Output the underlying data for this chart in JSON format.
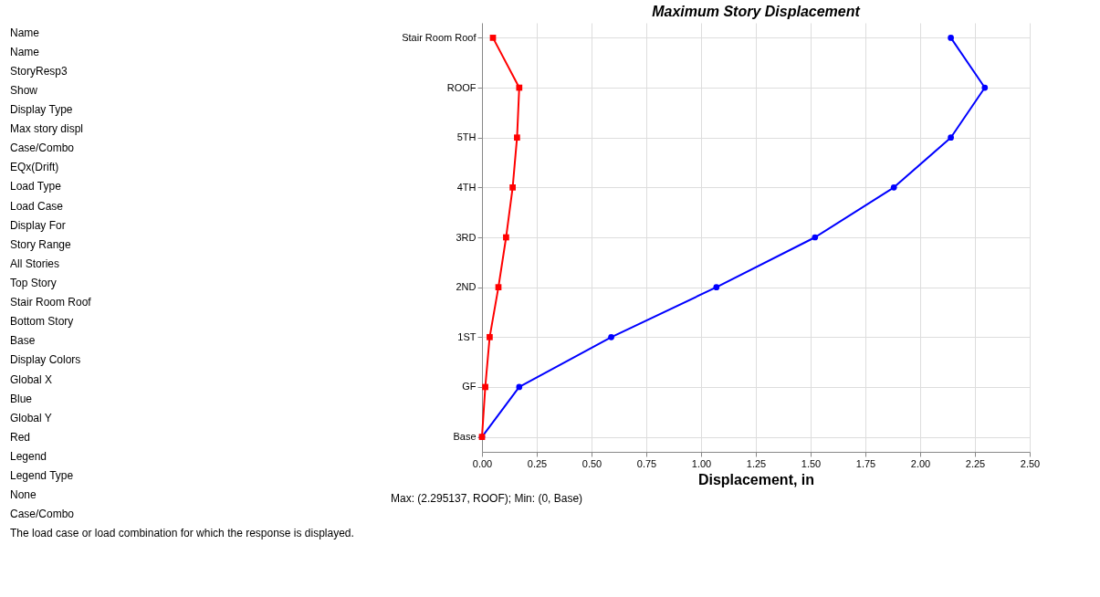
{
  "chart_data": [
    {
      "type": "other",
      "annotations": [
        "Name",
        "Name",
        "StoryResp3",
        "Show",
        "Display Type",
        "Max story displ",
        "Case/Combo",
        "EQx(Drift)",
        "Load Type",
        "Load Case",
        "Display For",
        "Story Range",
        "All Stories",
        "Top Story",
        "Stair Room Roof",
        "Bottom Story",
        "Base",
        "Display Colors",
        "Global X",
        "Blue",
        "Global Y",
        "Red",
        "Legend",
        "Legend Type",
        "None",
        "Case/Combo",
        "The load case or load combination for which the response is displayed."
      ]
    },
    {
      "type": "line",
      "orientation": "horizontal",
      "title": "Maximum Story Displacement",
      "xlabel": "Displacement, in",
      "categories": [
        "Stair Room Roof",
        "ROOF",
        "5TH",
        "4TH",
        "3RD",
        "2ND",
        "1ST",
        "GF",
        "Base"
      ],
      "series": [
        {
          "color": "#0000ff",
          "marker": "circle",
          "values": [
            2.14,
            2.295,
            2.14,
            1.88,
            1.52,
            1.07,
            0.59,
            0.17,
            0
          ]
        },
        {
          "color": "#ff0000",
          "marker": "square",
          "values": [
            0.05,
            0.17,
            0.16,
            0.14,
            0.11,
            0.075,
            0.035,
            0.015,
            0
          ]
        }
      ],
      "xlim": [
        0,
        2.5
      ],
      "xticks": [
        {
          "value": 0,
          "label": "0.00"
        },
        {
          "value": 0.25,
          "label": "0.25"
        },
        {
          "value": 0.5,
          "label": "0.50"
        },
        {
          "value": 0.75,
          "label": "0.75"
        },
        {
          "value": 1,
          "label": "1.00"
        },
        {
          "value": 1.25,
          "label": "1.25"
        },
        {
          "value": 1.5,
          "label": "1.50"
        },
        {
          "value": 1.75,
          "label": "1.75"
        },
        {
          "value": 2,
          "label": "2.00"
        },
        {
          "value": 2.25,
          "label": "2.25"
        },
        {
          "value": 2.5,
          "label": "2.50"
        }
      ],
      "grid": true,
      "annotations": [
        "Max: (2.295137, ROOF);   Min: (0, Base)"
      ]
    }
  ]
}
